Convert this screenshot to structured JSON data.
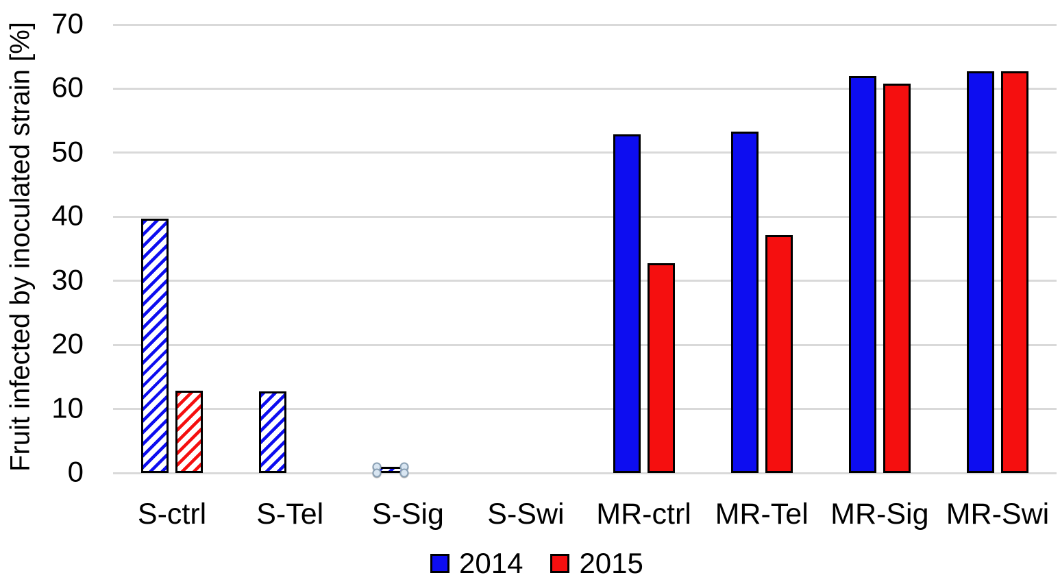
{
  "chart_data": {
    "type": "bar",
    "ylabel": "Fruit infected by inoculated strain [%]",
    "xlabel": "",
    "ylim": [
      0,
      70
    ],
    "yticks": [
      0,
      10,
      20,
      30,
      40,
      50,
      60,
      70
    ],
    "grid": true,
    "gridline_color": "#d9d9d9",
    "background": "#ffffff",
    "legend_position": "bottom",
    "categories": [
      "S-ctrl",
      "S-Tel",
      "S-Sig",
      "S-Swi",
      "MR-ctrl",
      "MR-Tel",
      "MR-Sig",
      "MR-Swi"
    ],
    "series": [
      {
        "name": "2014",
        "color": "#0d0df0",
        "values": [
          39.7,
          12.7,
          1,
          0,
          52.9,
          53.3,
          62,
          62.7
        ]
      },
      {
        "name": "2015",
        "color": "#f50f0f",
        "values": [
          12.8,
          0,
          0,
          0,
          32.8,
          37.1,
          60.8,
          62.7
        ]
      }
    ],
    "hatched_categories": [
      "S-ctrl",
      "S-Tel",
      "S-Sig",
      "S-Swi"
    ],
    "selected_point": {
      "category": "S-Sig",
      "series": "2014"
    }
  }
}
